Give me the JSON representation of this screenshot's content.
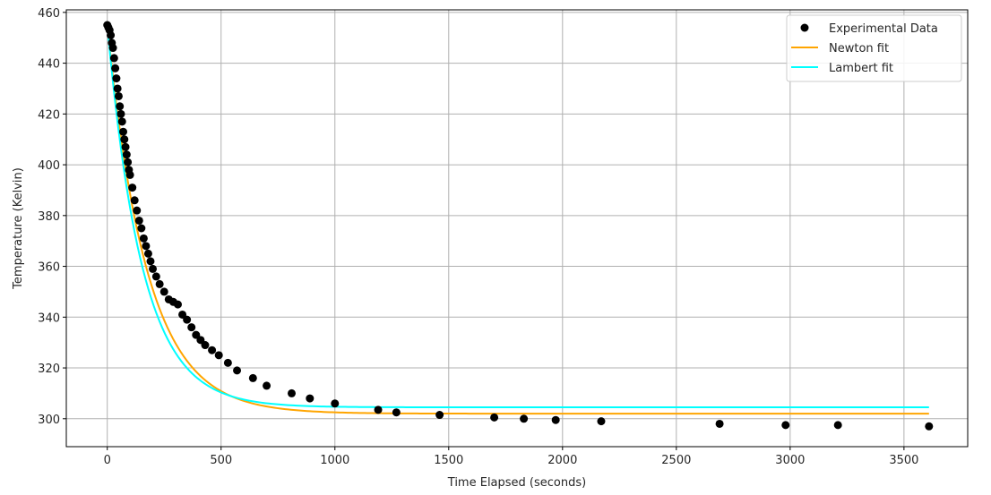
{
  "chart_data": {
    "type": "scatter",
    "xlabel": "Time Elapsed (seconds)",
    "ylabel": "Temperature (Kelvin)",
    "xlim": [
      -180,
      3780
    ],
    "ylim": [
      289,
      461
    ],
    "xticks": [
      0,
      500,
      1000,
      1500,
      2000,
      2500,
      3000,
      3500
    ],
    "yticks": [
      300,
      320,
      340,
      360,
      380,
      400,
      420,
      440,
      460
    ],
    "grid": true,
    "legend_position": "top-right",
    "colors": {
      "experimental": "#000000",
      "newton": "#FFA500",
      "lambert": "#00FFFF",
      "grid": "#b0b0b0",
      "axes": "#000000"
    },
    "series": [
      {
        "name": "Experimental Data",
        "kind": "scatter",
        "points": [
          [
            0,
            455
          ],
          [
            5,
            454
          ],
          [
            10,
            453
          ],
          [
            15,
            451
          ],
          [
            20,
            448
          ],
          [
            25,
            446
          ],
          [
            30,
            442
          ],
          [
            35,
            438
          ],
          [
            40,
            434
          ],
          [
            45,
            430
          ],
          [
            50,
            427
          ],
          [
            55,
            423
          ],
          [
            60,
            420
          ],
          [
            65,
            417
          ],
          [
            70,
            413
          ],
          [
            75,
            410
          ],
          [
            80,
            407
          ],
          [
            85,
            404
          ],
          [
            90,
            401
          ],
          [
            95,
            398
          ],
          [
            100,
            396
          ],
          [
            110,
            391
          ],
          [
            120,
            386
          ],
          [
            130,
            382
          ],
          [
            140,
            378
          ],
          [
            150,
            375
          ],
          [
            160,
            371
          ],
          [
            170,
            368
          ],
          [
            180,
            365
          ],
          [
            190,
            362
          ],
          [
            200,
            359
          ],
          [
            215,
            356
          ],
          [
            230,
            353
          ],
          [
            250,
            350
          ],
          [
            270,
            347
          ],
          [
            290,
            346
          ],
          [
            310,
            345
          ],
          [
            330,
            341
          ],
          [
            350,
            339
          ],
          [
            370,
            336
          ],
          [
            390,
            333
          ],
          [
            410,
            331
          ],
          [
            430,
            329
          ],
          [
            460,
            327
          ],
          [
            490,
            325
          ],
          [
            530,
            322
          ],
          [
            570,
            319
          ],
          [
            640,
            316
          ],
          [
            700,
            313
          ],
          [
            810,
            310
          ],
          [
            890,
            308
          ],
          [
            1000,
            306
          ],
          [
            1190,
            303.5
          ],
          [
            1270,
            302.5
          ],
          [
            1460,
            301.5
          ],
          [
            1700,
            300.5
          ],
          [
            1830,
            300
          ],
          [
            1970,
            299.5
          ],
          [
            2170,
            299
          ],
          [
            2690,
            298
          ],
          [
            2980,
            297.5
          ],
          [
            3210,
            297.5
          ],
          [
            3610,
            297
          ]
        ]
      },
      {
        "name": "Newton fit",
        "kind": "line",
        "model": {
          "T_env": 302,
          "T0": 455,
          "k": 0.0057,
          "x_max": 3610
        }
      },
      {
        "name": "Lambert fit",
        "kind": "line",
        "model": {
          "T_env": 304.5,
          "T0": 455,
          "k": 0.0065,
          "x_max": 3610
        }
      }
    ]
  }
}
